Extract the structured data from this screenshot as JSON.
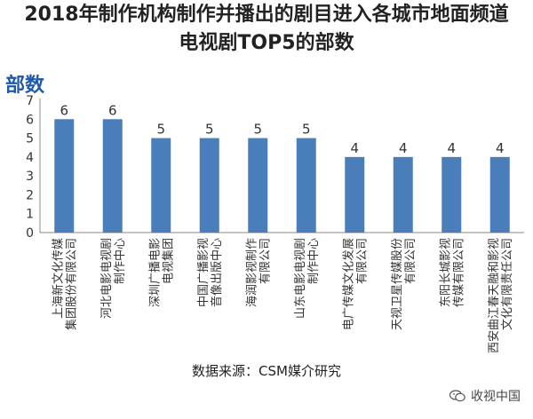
{
  "chart_data": {
    "type": "bar",
    "title": "2018年制作机构制作并播出的剧目进入各城市地面频道",
    "subtitle": "电视剧TOP5的部数",
    "ylabel": "部数",
    "xlabel": "",
    "ylim": [
      0,
      7
    ],
    "yticks": [
      0,
      1,
      2,
      3,
      4,
      5,
      6,
      7
    ],
    "grid": false,
    "categories": [
      "上海新文化传媒集团股份有限公司",
      "河北电影电视剧制作中心",
      "深圳广播电影电视集团",
      "中国广播影视音像出版中心",
      "海润影视制作有限公司",
      "山东电影电视剧制作中心",
      "电广传媒文化发展有限公司",
      "天视卫星传媒股份有限公司",
      "东阳长城影视传媒有限公司",
      "西安曲江春天融和影视文化有限责任公司"
    ],
    "category_lines": [
      [
        "上海新文化传媒",
        "集团股份有限公司"
      ],
      [
        "河北电影电视剧",
        "制作中心"
      ],
      [
        "深圳广播电影",
        "电视集团"
      ],
      [
        "中国广播影视",
        "音像出版中心"
      ],
      [
        "海润影视制作",
        "有限公司"
      ],
      [
        "山东电影电视剧",
        "制作中心"
      ],
      [
        "电广传媒文化发展",
        "有限公司"
      ],
      [
        "天视卫星传媒股份",
        "有限公司"
      ],
      [
        "东阳长城影视",
        "传媒有限公司"
      ],
      [
        "西安曲江春天融和影视",
        "文化有限责任公司"
      ]
    ],
    "values": [
      6,
      6,
      5,
      5,
      5,
      5,
      4,
      4,
      4,
      4
    ],
    "data_labels": true,
    "bar_color": "#4a7ebb"
  },
  "source": "数据来源：CSM媒介研究",
  "watermark": "收视中国",
  "watermark_icon": "wechat-icon",
  "colors": {
    "title": "#222222",
    "ylabel": "#1e5aa8",
    "axis": "#888888",
    "bar": "#4a7ebb"
  }
}
